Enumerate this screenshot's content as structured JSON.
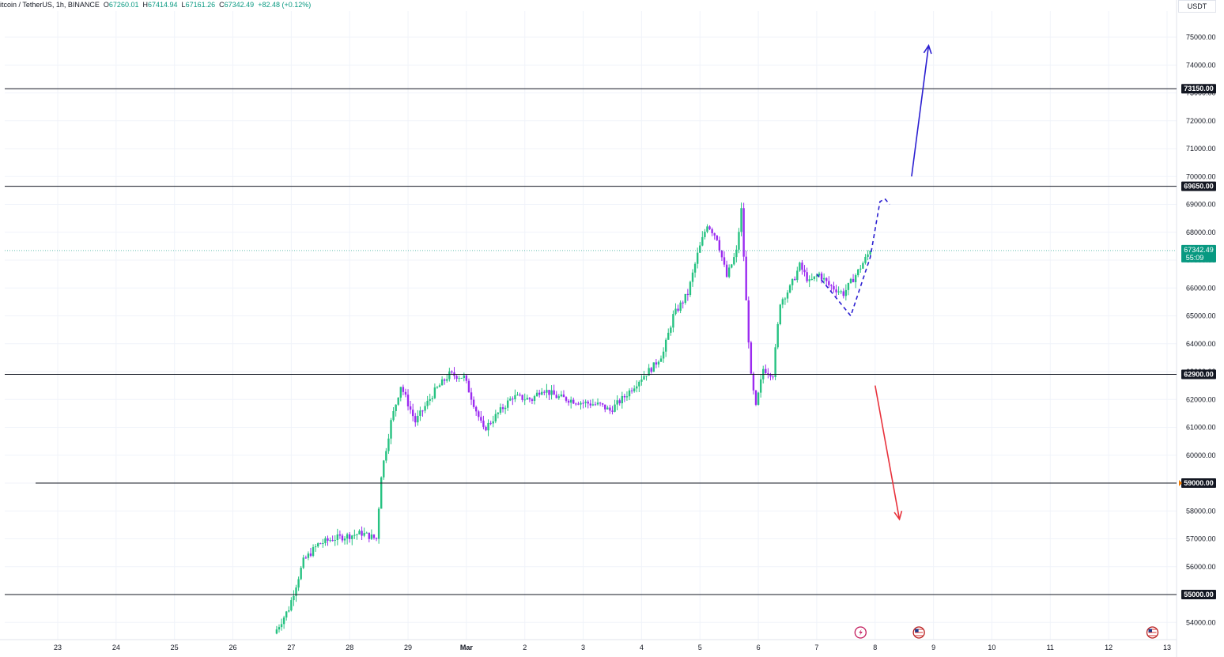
{
  "header": {
    "symbol": "itcoin / TetherUS, 1h, BINANCE",
    "o_label": "O",
    "o_value": "67260.01",
    "h_label": "H",
    "h_value": "67414.94",
    "l_label": "L",
    "l_value": "67161.26",
    "c_label": "C",
    "c_value": "67342.49",
    "change": "+82.48 (+0.12%)"
  },
  "currency": "USDT",
  "chart_data": {
    "type": "candlestick",
    "title": "",
    "x_tick_labels": [
      "23",
      "24",
      "25",
      "26",
      "27",
      "28",
      "29",
      "Mar",
      "2",
      "3",
      "4",
      "5",
      "6",
      "7",
      "8",
      "9",
      "10",
      "11",
      "12",
      "13"
    ],
    "y_tick_labels": [
      "54000.00",
      "55000.00",
      "56000.00",
      "57000.00",
      "58000.00",
      "59000.00",
      "60000.00",
      "61000.00",
      "62000.00",
      "63000.00",
      "64000.00",
      "65000.00",
      "66000.00",
      "67000.00",
      "68000.00",
      "69000.00",
      "70000.00",
      "71000.00",
      "72000.00",
      "73000.00",
      "74000.00",
      "75000.00"
    ],
    "ylim": [
      53600,
      76200
    ],
    "grid": true,
    "last_price": {
      "value": 67342.49,
      "label": "67342.49",
      "countdown": "55:09"
    },
    "levels": [
      {
        "value": 73150,
        "label": "73150.00"
      },
      {
        "value": 69650,
        "label": "69650.00"
      },
      {
        "value": 62900,
        "label": "62900.00"
      },
      {
        "value": 59000,
        "label": "59000.00"
      },
      {
        "value": 55000,
        "label": "55000.00"
      }
    ],
    "anchors": [
      [
        "2024-02-26 18:00",
        53600
      ],
      [
        "2024-02-27 00:00",
        54500
      ],
      [
        "2024-02-27 06:00",
        56200
      ],
      [
        "2024-02-27 12:00",
        56800
      ],
      [
        "2024-02-27 18:00",
        57000
      ],
      [
        "2024-02-28 06:00",
        57200
      ],
      [
        "2024-02-28 12:00",
        57000
      ],
      [
        "2024-02-28 14:00",
        59300
      ],
      [
        "2024-02-28 18:00",
        61200
      ],
      [
        "2024-02-28 22:00",
        62500
      ],
      [
        "2024-02-29 04:00",
        61200
      ],
      [
        "2024-02-29 12:00",
        62300
      ],
      [
        "2024-02-29 18:00",
        62900
      ],
      [
        "2024-03-01 00:00",
        62800
      ],
      [
        "2024-03-01 08:00",
        60900
      ],
      [
        "2024-03-01 14:00",
        61500
      ],
      [
        "2024-03-01 20:00",
        62100
      ],
      [
        "2024-03-02 04:00",
        62000
      ],
      [
        "2024-03-02 08:00",
        62400
      ],
      [
        "2024-03-02 14:00",
        62100
      ],
      [
        "2024-03-03 00:00",
        61900
      ],
      [
        "2024-03-03 08:00",
        61800
      ],
      [
        "2024-03-03 12:00",
        61600
      ],
      [
        "2024-03-03 18:00",
        62100
      ],
      [
        "2024-03-04 00:00",
        62700
      ],
      [
        "2024-03-04 06:00",
        63200
      ],
      [
        "2024-03-04 10:00",
        63700
      ],
      [
        "2024-03-04 14:00",
        65000
      ],
      [
        "2024-03-04 20:00",
        65800
      ],
      [
        "2024-03-05 00:00",
        67200
      ],
      [
        "2024-03-05 04:00",
        68300
      ],
      [
        "2024-03-05 08:00",
        67800
      ],
      [
        "2024-03-05 12:00",
        66400
      ],
      [
        "2024-03-05 16:00",
        67300
      ],
      [
        "2024-03-05 18:00",
        68800
      ],
      [
        "2024-03-05 20:00",
        65500
      ],
      [
        "2024-03-05 22:00",
        62800
      ],
      [
        "2024-03-06 00:00",
        61700
      ],
      [
        "2024-03-06 03:00",
        63100
      ],
      [
        "2024-03-06 07:00",
        62900
      ],
      [
        "2024-03-06 10:00",
        65500
      ],
      [
        "2024-03-06 14:00",
        66000
      ],
      [
        "2024-03-06 18:00",
        66800
      ],
      [
        "2024-03-06 22:00",
        66200
      ],
      [
        "2024-03-07 02:00",
        66500
      ],
      [
        "2024-03-07 06:00",
        66100
      ],
      [
        "2024-03-07 12:00",
        65800
      ],
      [
        "2024-03-07 18:00",
        66600
      ],
      [
        "2024-03-07 23:00",
        67342
      ]
    ],
    "annotations": [
      {
        "type": "arrow",
        "color": "#2b1fd1",
        "dashed": false,
        "points": [
          [
            "2024-03-08 15:00",
            70000
          ],
          [
            "2024-03-08 22:00",
            74700
          ]
        ]
      },
      {
        "type": "arrow",
        "color": "#e8323c",
        "dashed": false,
        "points": [
          [
            "2024-03-08 00:00",
            62500
          ],
          [
            "2024-03-08 10:00",
            57700
          ]
        ]
      },
      {
        "type": "path",
        "color": "#2b1fd1",
        "dashed": true,
        "points": [
          [
            "2024-03-07 00:00",
            66500
          ],
          [
            "2024-03-07 14:00",
            65000
          ],
          [
            "2024-03-07 22:00",
            67100
          ],
          [
            "2024-03-08 02:00",
            69100
          ],
          [
            "2024-03-08 04:00",
            69200
          ],
          [
            "2024-03-08 06:00",
            69000
          ]
        ]
      }
    ],
    "event_icons": [
      {
        "date": "2024-03-07 18:00",
        "icon": "lightning-icon"
      },
      {
        "date": "2024-03-08 18:00",
        "icon": "us-flag-icon"
      },
      {
        "date": "2024-03-12 18:00",
        "icon": "us-flag-icon"
      }
    ],
    "colors": {
      "up": "#26c281",
      "down": "#9b2bf0",
      "level": "#131722",
      "price_bg": "#089981",
      "axis_text": "#131722",
      "grid": "#f0f3fa"
    }
  }
}
